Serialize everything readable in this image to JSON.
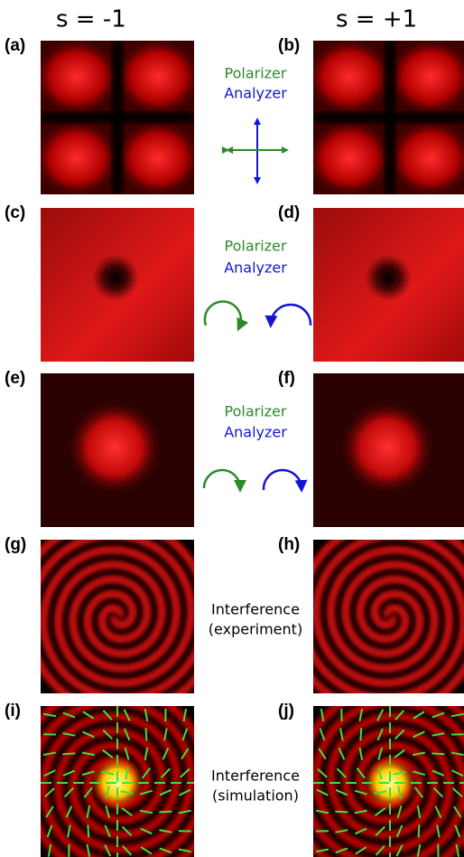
{
  "columns": [
    "s = -1",
    "s = +1"
  ],
  "rows": [
    {
      "left_label": "(a)",
      "right_label": "(b)",
      "middle": [
        "Polarizer",
        "Analyzer"
      ]
    },
    {
      "left_label": "(c)",
      "right_label": "(d)",
      "middle": [
        "Polarizer",
        "Analyzer"
      ]
    },
    {
      "left_label": "(e)",
      "right_label": "(f)",
      "middle": [
        "Polarizer",
        "Analyzer"
      ]
    },
    {
      "left_label": "(g)",
      "right_label": "(h)",
      "middle": [
        "Interference",
        "(experiment)"
      ]
    },
    {
      "left_label": "(i)",
      "right_label": "(j)",
      "middle": [
        "Interference",
        "(simulation)"
      ]
    }
  ]
}
